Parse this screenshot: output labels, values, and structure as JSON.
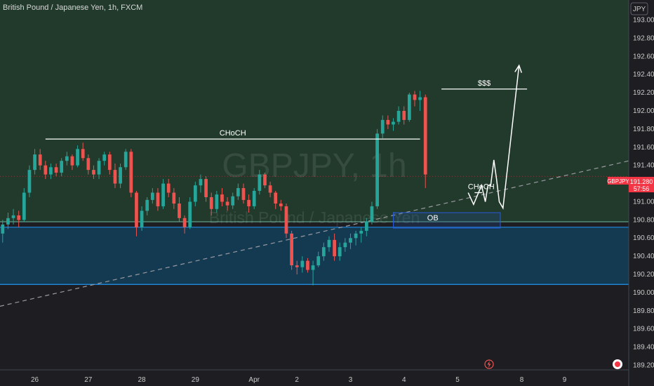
{
  "window": {
    "title": "British Pound / Japanese Yen, 1h, FXCM",
    "currency_button": "JPY",
    "watermark_symbol": "GBPJPY, 1h",
    "watermark_name": "British Pound / Japanese Yen"
  },
  "price_tag": {
    "symbol": "GBPJPY",
    "price": "191.280",
    "countdown": "57:56",
    "color": "#f23645"
  },
  "icons": {
    "lightning": "lightning-icon",
    "record": "record-icon"
  },
  "colors": {
    "up": "#26a69a",
    "down": "#ef5350",
    "bullish_zone": "#213a2c",
    "bearish_zone": "#143a52",
    "zone_line": "#2196f3",
    "ob_box": "#2a5bd7",
    "background": "#1e1e22",
    "drawing": "#ffffff"
  },
  "annotations": {
    "choch_top": "CHoCH",
    "dollars": "$$$",
    "choch_small": "CHoCH",
    "ob": "OB"
  },
  "chart_data": {
    "type": "candlestick",
    "title": "British Pound / Japanese Yen, 1h, FXCM",
    "symbol": "GBPJPY",
    "timeframe": "1h",
    "y_axis": {
      "side": "right",
      "ticks": [
        "189.200",
        "189.400",
        "189.600",
        "189.800",
        "190.000",
        "190.200",
        "190.400",
        "190.600",
        "190.800",
        "191.000",
        "191.200",
        "191.400",
        "191.600",
        "191.800",
        "192.000",
        "192.200",
        "192.400",
        "192.600",
        "192.800",
        "193.000"
      ],
      "range": [
        189.15,
        193.22
      ]
    },
    "x_axis": {
      "ticks": [
        {
          "label": "26",
          "i": 6
        },
        {
          "label": "27",
          "i": 16
        },
        {
          "label": "28",
          "i": 26
        },
        {
          "label": "29",
          "i": 36
        },
        {
          "label": "Apr",
          "i": 47
        },
        {
          "label": "2",
          "i": 55
        },
        {
          "label": "3",
          "i": 65
        },
        {
          "label": "4",
          "i": 75
        },
        {
          "label": "5",
          "i": 85
        },
        {
          "label": "8",
          "i": 97
        },
        {
          "label": "9",
          "i": 105
        }
      ],
      "range": [
        -0.5,
        117
      ]
    },
    "zones": [
      {
        "kind": "bullish",
        "top": 193.22,
        "bottom": 190.78
      },
      {
        "kind": "bearish",
        "top": 190.72,
        "bottom": 190.09
      }
    ],
    "order_block": {
      "label": "OB",
      "top": 190.88,
      "bottom": 190.71,
      "x_start": 73,
      "x_end": 93
    },
    "levels": [
      {
        "label": "CHoCH",
        "price": 191.69,
        "x_start": 8,
        "x_end": 78
      },
      {
        "label": "$$$",
        "price": 192.24,
        "x_start": 82,
        "x_end": 98
      }
    ],
    "trendline": {
      "style": "dashed",
      "points": [
        {
          "x": -0.5,
          "y": 189.85
        },
        {
          "x": 117,
          "y": 191.45
        }
      ]
    },
    "projection": {
      "label": "CHoCH",
      "points": [
        {
          "x": 87,
          "y": 191.1
        },
        {
          "x": 88,
          "y": 190.97
        },
        {
          "x": 89.5,
          "y": 191.18
        },
        {
          "x": 90.2,
          "y": 191.0
        },
        {
          "x": 90.7,
          "y": 191.18
        },
        {
          "x": 91.2,
          "y": 191.18
        },
        {
          "x": 91.8,
          "y": 191.46
        },
        {
          "x": 92.3,
          "y": 191.25
        },
        {
          "x": 92.8,
          "y": 191.0
        },
        {
          "x": 93.5,
          "y": 190.93
        },
        {
          "x": 96.5,
          "y": 192.5
        }
      ],
      "small_segment": [
        {
          "x": 88.2,
          "y": 191.1
        },
        {
          "x": 89.6,
          "y": 191.1
        }
      ]
    },
    "candles": [
      [
        190.65,
        190.8,
        190.55,
        190.75
      ],
      [
        190.75,
        190.88,
        190.7,
        190.82
      ],
      [
        190.82,
        190.92,
        190.75,
        190.85
      ],
      [
        190.85,
        190.9,
        190.72,
        190.8
      ],
      [
        190.8,
        191.15,
        190.78,
        191.1
      ],
      [
        191.1,
        191.4,
        191.05,
        191.35
      ],
      [
        191.35,
        191.58,
        191.3,
        191.52
      ],
      [
        191.52,
        191.58,
        191.35,
        191.4
      ],
      [
        191.4,
        191.45,
        191.25,
        191.3
      ],
      [
        191.3,
        191.42,
        191.25,
        191.38
      ],
      [
        191.38,
        191.42,
        191.28,
        191.32
      ],
      [
        191.32,
        191.48,
        191.28,
        191.45
      ],
      [
        191.45,
        191.55,
        191.4,
        191.5
      ],
      [
        191.5,
        191.52,
        191.35,
        191.4
      ],
      [
        191.4,
        191.62,
        191.38,
        191.58
      ],
      [
        191.58,
        191.65,
        191.45,
        191.48
      ],
      [
        191.48,
        191.52,
        191.3,
        191.35
      ],
      [
        191.35,
        191.4,
        191.25,
        191.3
      ],
      [
        191.3,
        191.48,
        191.25,
        191.45
      ],
      [
        191.45,
        191.55,
        191.4,
        191.52
      ],
      [
        191.52,
        191.55,
        191.3,
        191.35
      ],
      [
        191.35,
        191.42,
        191.15,
        191.2
      ],
      [
        191.2,
        191.42,
        191.15,
        191.38
      ],
      [
        191.38,
        191.58,
        191.35,
        191.55
      ],
      [
        191.55,
        191.58,
        191.05,
        191.1
      ],
      [
        191.1,
        191.12,
        190.62,
        190.72
      ],
      [
        190.72,
        190.95,
        190.68,
        190.9
      ],
      [
        190.9,
        191.05,
        190.85,
        191.02
      ],
      [
        191.02,
        191.15,
        190.98,
        191.1
      ],
      [
        191.1,
        191.15,
        190.9,
        190.95
      ],
      [
        190.95,
        191.25,
        190.92,
        191.2
      ],
      [
        191.2,
        191.25,
        191.05,
        191.1
      ],
      [
        191.1,
        191.15,
        190.92,
        190.98
      ],
      [
        190.98,
        191.05,
        190.78,
        190.82
      ],
      [
        190.82,
        190.85,
        190.65,
        190.72
      ],
      [
        190.72,
        191.05,
        190.7,
        191.0
      ],
      [
        191.0,
        191.22,
        190.95,
        191.18
      ],
      [
        191.18,
        191.3,
        191.1,
        191.25
      ],
      [
        191.25,
        191.28,
        191.0,
        191.05
      ],
      [
        191.05,
        191.1,
        190.85,
        190.92
      ],
      [
        190.92,
        191.12,
        190.88,
        191.08
      ],
      [
        191.08,
        191.15,
        190.95,
        191.0
      ],
      [
        191.0,
        191.05,
        190.9,
        190.96
      ],
      [
        190.96,
        191.1,
        190.92,
        191.06
      ],
      [
        191.06,
        191.2,
        191.02,
        191.15
      ],
      [
        191.15,
        191.2,
        190.98,
        191.02
      ],
      [
        191.02,
        191.08,
        190.88,
        190.95
      ],
      [
        190.95,
        191.15,
        190.92,
        191.12
      ],
      [
        191.12,
        191.35,
        191.08,
        191.3
      ],
      [
        191.3,
        191.32,
        191.15,
        191.18
      ],
      [
        191.18,
        191.22,
        191.05,
        191.1
      ],
      [
        191.1,
        191.12,
        190.92,
        190.98
      ],
      [
        190.98,
        191.02,
        190.9,
        190.95
      ],
      [
        190.95,
        190.98,
        190.6,
        190.65
      ],
      [
        190.65,
        190.68,
        190.25,
        190.3
      ],
      [
        190.3,
        190.35,
        190.2,
        190.28
      ],
      [
        190.28,
        190.4,
        190.22,
        190.35
      ],
      [
        190.35,
        190.38,
        190.22,
        190.25
      ],
      [
        190.25,
        190.35,
        190.08,
        190.3
      ],
      [
        190.3,
        190.45,
        190.28,
        190.4
      ],
      [
        190.4,
        190.55,
        190.35,
        190.5
      ],
      [
        190.5,
        190.62,
        190.45,
        190.58
      ],
      [
        190.58,
        190.65,
        190.35,
        190.4
      ],
      [
        190.4,
        190.55,
        190.35,
        190.5
      ],
      [
        190.5,
        190.6,
        190.45,
        190.55
      ],
      [
        190.55,
        190.65,
        190.48,
        190.6
      ],
      [
        190.6,
        190.68,
        190.52,
        190.65
      ],
      [
        190.65,
        190.72,
        190.55,
        190.68
      ],
      [
        190.68,
        190.82,
        190.62,
        190.78
      ],
      [
        190.78,
        191.0,
        190.75,
        190.95
      ],
      [
        190.95,
        191.8,
        190.92,
        191.75
      ],
      [
        191.75,
        191.95,
        191.7,
        191.9
      ],
      [
        191.9,
        191.95,
        191.8,
        191.85
      ],
      [
        191.85,
        191.92,
        191.78,
        191.88
      ],
      [
        191.88,
        192.05,
        191.85,
        192.0
      ],
      [
        192.0,
        192.05,
        191.85,
        191.9
      ],
      [
        191.9,
        192.2,
        191.88,
        192.18
      ],
      [
        192.18,
        192.22,
        192.05,
        192.12
      ],
      [
        192.12,
        192.22,
        192.0,
        192.15
      ],
      [
        192.15,
        192.18,
        191.15,
        191.3
      ]
    ]
  }
}
